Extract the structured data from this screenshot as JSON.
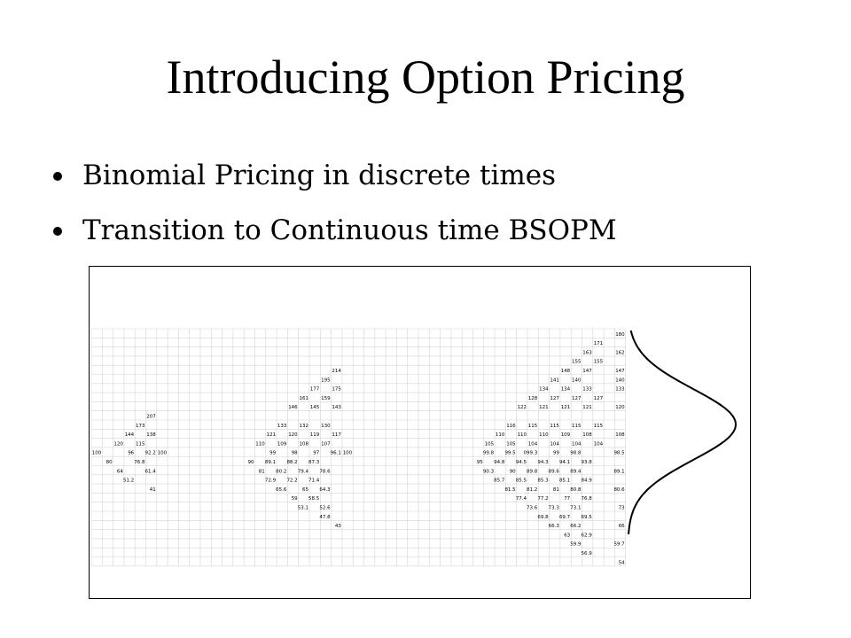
{
  "slide": {
    "title": "Introducing Option Pricing",
    "bullets": [
      "Binomial Pricing in discrete times",
      "Transition to Continuous time BSOPM"
    ]
  },
  "lattice_table": {
    "rows": [
      [
        "",
        "",
        "",
        "",
        "",
        "",
        "",
        "",
        "",
        "",
        "",
        "",
        "",
        "",
        "",
        "",
        "",
        "",
        "",
        "",
        "",
        "",
        "",
        "",
        "",
        "",
        "",
        "",
        "",
        "",
        "",
        "",
        "",
        "",
        "",
        "",
        "",
        "",
        "",
        "",
        "",
        "",
        "",
        "",
        "",
        "",
        "",
        "",
        "180"
      ],
      [
        "",
        "",
        "",
        "",
        "",
        "",
        "",
        "",
        "",
        "",
        "",
        "",
        "",
        "",
        "",
        "",
        "",
        "",
        "",
        "",
        "",
        "",
        "",
        "",
        "",
        "",
        "",
        "",
        "",
        "",
        "",
        "",
        "",
        "",
        "",
        "",
        "",
        "",
        "",
        "",
        "",
        "",
        "",
        "",
        "",
        "",
        "171",
        "",
        ""
      ],
      [
        "",
        "",
        "",
        "",
        "",
        "",
        "",
        "",
        "",
        "",
        "",
        "",
        "",
        "",
        "",
        "",
        "",
        "",
        "",
        "",
        "",
        "",
        "",
        "",
        "",
        "",
        "",
        "",
        "",
        "",
        "",
        "",
        "",
        "",
        "",
        "",
        "",
        "",
        "",
        "",
        "",
        "",
        "",
        "",
        "",
        "163",
        "",
        "",
        "162"
      ],
      [
        "",
        "",
        "",
        "",
        "",
        "",
        "",
        "",
        "",
        "",
        "",
        "",
        "",
        "",
        "",
        "",
        "",
        "",
        "",
        "",
        "",
        "",
        "",
        "",
        "",
        "",
        "",
        "",
        "",
        "",
        "",
        "",
        "",
        "",
        "",
        "",
        "",
        "",
        "",
        "",
        "",
        "",
        "",
        "",
        "155",
        "",
        "155",
        "",
        ""
      ],
      [
        "",
        "",
        "",
        "",
        "",
        "",
        "",
        "",
        "",
        "",
        "",
        "",
        "",
        "",
        "",
        "",
        "",
        "",
        "",
        "",
        "",
        "",
        "214",
        "",
        "",
        "",
        "",
        "",
        "",
        "",
        "",
        "",
        "",
        "",
        "",
        "",
        "",
        "",
        "",
        "",
        "",
        "",
        "",
        "148",
        "",
        "147",
        "",
        "",
        "147"
      ],
      [
        "",
        "",
        "",
        "",
        "",
        "",
        "",
        "",
        "",
        "",
        "",
        "",
        "",
        "",
        "",
        "",
        "",
        "",
        "",
        "",
        "",
        "195",
        "",
        "",
        "",
        "",
        "",
        "",
        "",
        "",
        "",
        "",
        "",
        "",
        "",
        "",
        "",
        "",
        "",
        "",
        "",
        "",
        "141",
        "",
        "140",
        "",
        "",
        "",
        "140"
      ],
      [
        "",
        "",
        "",
        "",
        "",
        "",
        "",
        "",
        "",
        "",
        "",
        "",
        "",
        "",
        "",
        "",
        "",
        "",
        "",
        "",
        "177",
        "",
        "175",
        "",
        "",
        "",
        "",
        "",
        "",
        "",
        "",
        "",
        "",
        "",
        "",
        "",
        "",
        "",
        "",
        "",
        "",
        "134",
        "",
        "134",
        "",
        "133",
        "",
        "",
        "133"
      ],
      [
        "",
        "",
        "",
        "",
        "",
        "",
        "",
        "",
        "",
        "",
        "",
        "",
        "",
        "",
        "",
        "",
        "",
        "",
        "",
        "161",
        "",
        "159",
        "",
        "",
        "",
        "",
        "",
        "",
        "",
        "",
        "",
        "",
        "",
        "",
        "",
        "",
        "",
        "",
        "",
        "",
        "128",
        "",
        "127",
        "",
        "127",
        "",
        "127",
        "",
        ""
      ],
      [
        "",
        "",
        "",
        "",
        "",
        "",
        "",
        "",
        "",
        "",
        "",
        "",
        "",
        "",
        "",
        "",
        "",
        "",
        "146",
        "",
        "145",
        "",
        "143",
        "",
        "",
        "",
        "",
        "",
        "",
        "",
        "",
        "",
        "",
        "",
        "",
        "",
        "",
        "",
        "",
        "122",
        "",
        "121",
        "",
        "121",
        "",
        "121",
        "",
        "",
        "120"
      ],
      [
        "",
        "",
        "",
        "",
        "",
        "207",
        "",
        "",
        "",
        "",
        "",
        "",
        "",
        "",
        "",
        "",
        "",
        "",
        "",
        "",
        "",
        "",
        "",
        "",
        "",
        "",
        "",
        "",
        "",
        "",
        "",
        "",
        "",
        "",
        "",
        "",
        "",
        "",
        "",
        "",
        "",
        "",
        "",
        "",
        "",
        "",
        "",
        "",
        ""
      ],
      [
        "",
        "",
        "",
        "",
        "173",
        "",
        "",
        "",
        "",
        "",
        "",
        "",
        "",
        "",
        "",
        "",
        "",
        "133",
        "",
        "132",
        "",
        "130",
        "",
        "",
        "",
        "",
        "",
        "",
        "",
        "",
        "",
        "",
        "",
        "",
        "",
        "",
        "",
        "",
        "116",
        "",
        "115",
        "",
        "115",
        "",
        "115",
        "",
        "115",
        "",
        ""
      ],
      [
        "",
        "",
        "",
        "144",
        "",
        "138",
        "",
        "",
        "",
        "",
        "",
        "",
        "",
        "",
        "",
        "",
        "121",
        "",
        "120",
        "",
        "119",
        "",
        "117",
        "",
        "",
        "",
        "",
        "",
        "",
        "",
        "",
        "",
        "",
        "",
        "",
        "",
        "",
        "110",
        "",
        "110",
        "",
        "110",
        "",
        "109",
        "",
        "108",
        "",
        "",
        "108"
      ],
      [
        "",
        "",
        "120",
        "",
        "115",
        "",
        "",
        "",
        "",
        "",
        "",
        "",
        "",
        "",
        "",
        "110",
        "",
        "109",
        "",
        "108",
        "",
        "107",
        "",
        "",
        "",
        "",
        "",
        "",
        "",
        "",
        "",
        "",
        "",
        "",
        "",
        "",
        "105",
        "",
        "105",
        "",
        "104",
        "",
        "104",
        "",
        "104",
        "",
        "104",
        "",
        ""
      ],
      [
        "100",
        "",
        "",
        "96",
        "",
        "92.2",
        "100",
        "",
        "",
        "",
        "",
        "",
        "",
        "",
        "",
        "",
        "99",
        "",
        "98",
        "",
        "97",
        "",
        "96.1",
        "100",
        "",
        "",
        "",
        "",
        "",
        "",
        "",
        "",
        "",
        "",
        "",
        "",
        "99.8",
        "",
        "99.5",
        "0",
        "99.3",
        "",
        "99",
        "",
        "98.8",
        "",
        "",
        "",
        "98.5"
      ],
      [
        "",
        "80",
        "",
        "",
        "76.8",
        "",
        "",
        "",
        "",
        "",
        "",
        "",
        "",
        "",
        "90",
        "",
        "89.1",
        "",
        "88.2",
        "",
        "87.3",
        "",
        "",
        "",
        "",
        "",
        "",
        "",
        "",
        "",
        "",
        "",
        "",
        "",
        "",
        "95",
        "",
        "94.8",
        "",
        "94.5",
        "",
        "94.3",
        "",
        "94.1",
        "",
        "93.8",
        "",
        "",
        ""
      ],
      [
        "",
        "",
        "64",
        "",
        "",
        "61.4",
        "",
        "",
        "",
        "",
        "",
        "",
        "",
        "",
        "",
        "81",
        "",
        "80.2",
        "",
        "79.4",
        "",
        "78.6",
        "",
        "",
        "",
        "",
        "",
        "",
        "",
        "",
        "",
        "",
        "",
        "",
        "",
        "",
        "90.3",
        "",
        "90",
        "",
        "89.8",
        "",
        "89.6",
        "",
        "89.4",
        "",
        "",
        "",
        "89.1"
      ],
      [
        "",
        "",
        "",
        "51.2",
        "",
        "",
        "",
        "",
        "",
        "",
        "",
        "",
        "",
        "",
        "",
        "",
        "72.9",
        "",
        "72.2",
        "",
        "71.4",
        "",
        "",
        "",
        "",
        "",
        "",
        "",
        "",
        "",
        "",
        "",
        "",
        "",
        "",
        "",
        "",
        "85.7",
        "",
        "85.5",
        "",
        "85.3",
        "",
        "85.1",
        "",
        "84.9",
        "",
        "",
        ""
      ],
      [
        "",
        "",
        "",
        "",
        "",
        "41",
        "",
        "",
        "",
        "",
        "",
        "",
        "",
        "",
        "",
        "",
        "",
        "65.6",
        "",
        "65",
        "",
        "64.3",
        "",
        "",
        "",
        "",
        "",
        "",
        "",
        "",
        "",
        "",
        "",
        "",
        "",
        "",
        "",
        "",
        "81.5",
        "",
        "81.2",
        "",
        "81",
        "",
        "80.8",
        "",
        "",
        "",
        "80.6"
      ],
      [
        "",
        "",
        "",
        "",
        "",
        "",
        "",
        "",
        "",
        "",
        "",
        "",
        "",
        "",
        "",
        "",
        "",
        "",
        "59",
        "",
        "58.5",
        "",
        "",
        "",
        "",
        "",
        "",
        "",
        "",
        "",
        "",
        "",
        "",
        "",
        "",
        "",
        "",
        "",
        "",
        "77.4",
        "",
        "77.2",
        "",
        "77",
        "",
        "76.8",
        "",
        "",
        ""
      ],
      [
        "",
        "",
        "",
        "",
        "",
        "",
        "",
        "",
        "",
        "",
        "",
        "",
        "",
        "",
        "",
        "",
        "",
        "",
        "",
        "53.1",
        "",
        "52.6",
        "",
        "",
        "",
        "",
        "",
        "",
        "",
        "",
        "",
        "",
        "",
        "",
        "",
        "",
        "",
        "",
        "",
        "",
        "73.6",
        "",
        "73.3",
        "",
        "73.1",
        "",
        "",
        "",
        "73"
      ],
      [
        "",
        "",
        "",
        "",
        "",
        "",
        "",
        "",
        "",
        "",
        "",
        "",
        "",
        "",
        "",
        "",
        "",
        "",
        "",
        "",
        "",
        "47.8",
        "",
        "",
        "",
        "",
        "",
        "",
        "",
        "",
        "",
        "",
        "",
        "",
        "",
        "",
        "",
        "",
        "",
        "",
        "",
        "69.8",
        "",
        "69.7",
        "",
        "69.5",
        "",
        "",
        ""
      ],
      [
        "",
        "",
        "",
        "",
        "",
        "",
        "",
        "",
        "",
        "",
        "",
        "",
        "",
        "",
        "",
        "",
        "",
        "",
        "",
        "",
        "",
        "",
        "43",
        "",
        "",
        "",
        "",
        "",
        "",
        "",
        "",
        "",
        "",
        "",
        "",
        "",
        "",
        "",
        "",
        "",
        "",
        "",
        "66.3",
        "",
        "66.2",
        "",
        "",
        "",
        "66"
      ],
      [
        "",
        "",
        "",
        "",
        "",
        "",
        "",
        "",
        "",
        "",
        "",
        "",
        "",
        "",
        "",
        "",
        "",
        "",
        "",
        "",
        "",
        "",
        "",
        "",
        "",
        "",
        "",
        "",
        "",
        "",
        "",
        "",
        "",
        "",
        "",
        "",
        "",
        "",
        "",
        "",
        "",
        "",
        "",
        "63",
        "",
        "62.9",
        "",
        "",
        ""
      ],
      [
        "",
        "",
        "",
        "",
        "",
        "",
        "",
        "",
        "",
        "",
        "",
        "",
        "",
        "",
        "",
        "",
        "",
        "",
        "",
        "",
        "",
        "",
        "",
        "",
        "",
        "",
        "",
        "",
        "",
        "",
        "",
        "",
        "",
        "",
        "",
        "",
        "",
        "",
        "",
        "",
        "",
        "",
        "",
        "",
        "59.9",
        "",
        "",
        "",
        "59.7"
      ],
      [
        "",
        "",
        "",
        "",
        "",
        "",
        "",
        "",
        "",
        "",
        "",
        "",
        "",
        "",
        "",
        "",
        "",
        "",
        "",
        "",
        "",
        "",
        "",
        "",
        "",
        "",
        "",
        "",
        "",
        "",
        "",
        "",
        "",
        "",
        "",
        "",
        "",
        "",
        "",
        "",
        "",
        "",
        "",
        "",
        "",
        "56.9",
        "",
        "",
        ""
      ],
      [
        "",
        "",
        "",
        "",
        "",
        "",
        "",
        "",
        "",
        "",
        "",
        "",
        "",
        "",
        "",
        "",
        "",
        "",
        "",
        "",
        "",
        "",
        "",
        "",
        "",
        "",
        "",
        "",
        "",
        "",
        "",
        "",
        "",
        "",
        "",
        "",
        "",
        "",
        "",
        "",
        "",
        "",
        "",
        "",
        "",
        "",
        "",
        "",
        "54"
      ]
    ]
  }
}
